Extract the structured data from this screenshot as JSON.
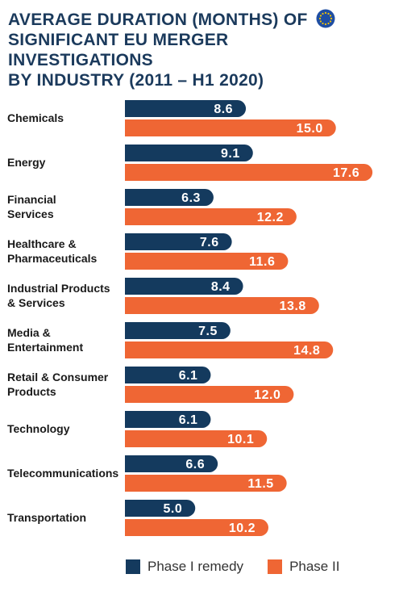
{
  "title_lines": [
    "AVERAGE DURATION (MONTHS) OF",
    "SIGNIFICANT EU MERGER INVESTIGATIONS",
    "BY INDUSTRY (2011 – H1 2020)"
  ],
  "icons": {
    "flag": "eu-flag-icon"
  },
  "colors": {
    "title": "#1b3a5c",
    "phase1": "#143a5e",
    "phase2": "#ef6634",
    "label": "#1a1a1a",
    "eu_flag": "#1f4ea3",
    "eu_stars": "#f5c400"
  },
  "chart_data": {
    "type": "bar",
    "orientation": "horizontal",
    "categories": [
      [
        "Chemicals"
      ],
      [
        "Energy"
      ],
      [
        "Financial",
        "Services"
      ],
      [
        "Healthcare &",
        "Pharmaceuticals"
      ],
      [
        "Industrial Products",
        "& Services"
      ],
      [
        "Media &",
        "Entertainment"
      ],
      [
        "Retail & Consumer",
        "Products"
      ],
      [
        "Technology"
      ],
      [
        "Telecommunications"
      ],
      [
        "Transportation"
      ]
    ],
    "series": [
      {
        "name": "Phase I remedy",
        "values": [
          8.6,
          9.1,
          6.3,
          7.6,
          8.4,
          7.5,
          6.1,
          6.1,
          6.6,
          5.0
        ]
      },
      {
        "name": "Phase II",
        "values": [
          15.0,
          17.6,
          12.2,
          11.6,
          13.8,
          14.8,
          12.0,
          10.1,
          11.5,
          10.2
        ]
      }
    ],
    "value_format": "0.0",
    "xlim": [
      0,
      18
    ],
    "grid": false,
    "axis_lines": false,
    "legend_position": "bottom"
  }
}
